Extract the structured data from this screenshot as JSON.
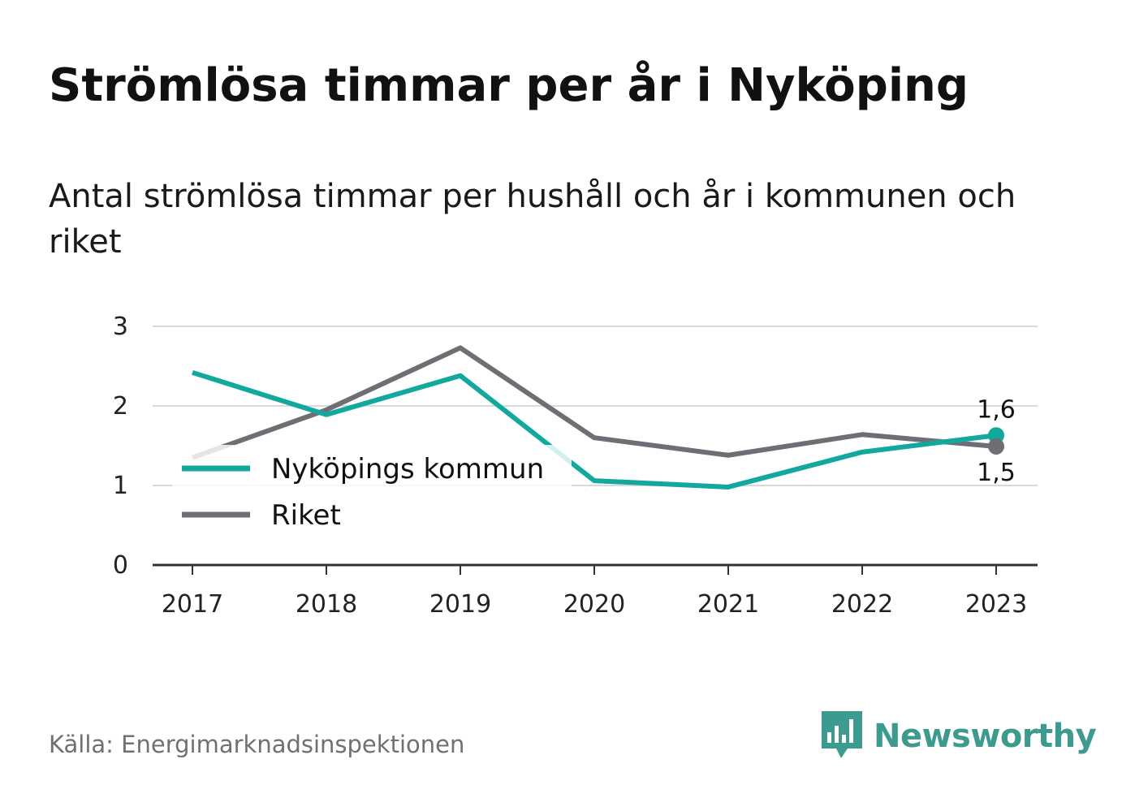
{
  "title": "Strömlösa timmar per år i Nyköping",
  "subtitle": "Antal strömlösa timmar per hushåll och år i kommunen och riket",
  "source": "Källa: Energimarknadsinspektionen",
  "brand": {
    "name": "Newsworthy",
    "logo_icon": "newsworthy-chart-bubble-icon",
    "color": "#3c9a8f"
  },
  "chart_data": {
    "type": "line",
    "title": "Strömlösa timmar per år i Nyköping",
    "subtitle": "Antal strömlösa timmar per hushåll och år i kommunen och riket",
    "xlabel": "",
    "ylabel": "",
    "x": [
      "2017",
      "2018",
      "2019",
      "2020",
      "2021",
      "2022",
      "2023"
    ],
    "ylim": [
      0,
      3
    ],
    "yticks": [
      "0",
      "1",
      "2",
      "3"
    ],
    "grid": true,
    "legend_position": "left-middle",
    "series": [
      {
        "name": "Nyköpings kommun",
        "color": "#13a89e",
        "values": [
          2.42,
          1.89,
          2.38,
          1.06,
          0.98,
          1.42,
          1.63
        ]
      },
      {
        "name": "Riket",
        "color": "#6e6e74",
        "values": [
          1.35,
          1.95,
          2.73,
          1.6,
          1.38,
          1.64,
          1.49
        ]
      }
    ],
    "end_labels": [
      "1,6",
      "1,5"
    ]
  }
}
